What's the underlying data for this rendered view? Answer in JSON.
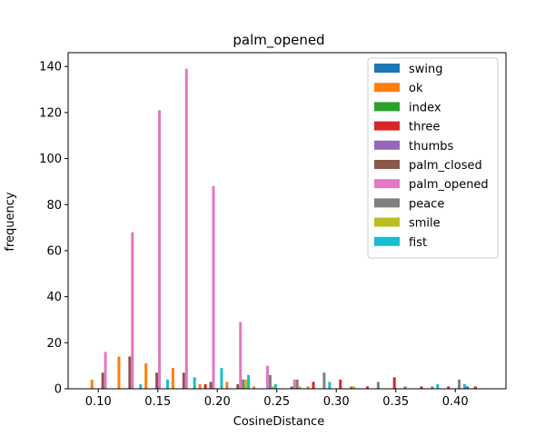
{
  "chart_data": {
    "type": "bar",
    "title": "palm_opened",
    "xlabel": "CosineDistance",
    "ylabel": "frequency",
    "xlim": [
      0.0746,
      0.4426
    ],
    "ylim": [
      0,
      146
    ],
    "xticks": [
      0.1,
      0.15,
      0.2,
      0.25,
      0.3,
      0.35,
      0.4
    ],
    "xtick_labels": [
      "0.10",
      "0.15",
      "0.20",
      "0.25",
      "0.30",
      "0.35",
      "0.40"
    ],
    "yticks": [
      0,
      20,
      40,
      60,
      80,
      100,
      120,
      140
    ],
    "ytick_labels": [
      "0",
      "20",
      "40",
      "60",
      "80",
      "100",
      "120",
      "140"
    ],
    "bin_edges": [
      0.0912,
      0.1139,
      0.1366,
      0.1593,
      0.182,
      0.2047,
      0.2274,
      0.2501,
      0.2728,
      0.2955,
      0.3182,
      0.3409,
      0.3636,
      0.3863,
      0.409,
      0.4317
    ],
    "legend_position": "upper right",
    "series": [
      {
        "name": "swing",
        "color": "#1f77b4",
        "values": [
          0,
          0,
          0,
          0,
          0,
          0,
          0,
          0,
          0,
          0,
          0,
          0,
          0,
          0,
          1
        ]
      },
      {
        "name": "ok",
        "color": "#ff7f0e",
        "values": [
          4,
          14,
          11,
          9,
          2,
          3,
          1,
          0,
          1,
          0,
          0,
          0,
          0,
          0,
          0
        ]
      },
      {
        "name": "index",
        "color": "#2ca02c",
        "values": [
          0,
          0,
          0,
          0,
          0,
          0,
          0,
          0,
          0,
          0,
          0,
          0,
          0,
          0,
          0
        ]
      },
      {
        "name": "three",
        "color": "#d62728",
        "values": [
          0,
          0,
          0,
          0,
          2,
          0,
          0,
          0,
          3,
          4,
          1,
          5,
          1,
          1,
          1
        ]
      },
      {
        "name": "thumbs",
        "color": "#9467bd",
        "values": [
          0,
          0,
          0,
          0,
          0,
          0,
          0,
          0,
          0,
          0,
          0,
          0,
          0,
          0,
          0
        ]
      },
      {
        "name": "palm_closed",
        "color": "#8c564b",
        "values": [
          7,
          14,
          7,
          7,
          3,
          2,
          0,
          1,
          0,
          0,
          0,
          0,
          0,
          0,
          0
        ]
      },
      {
        "name": "palm_opened",
        "color": "#e377c2",
        "values": [
          16,
          68,
          121,
          139,
          88,
          29,
          10,
          4,
          0,
          0,
          0,
          0,
          0,
          0,
          0
        ]
      },
      {
        "name": "peace",
        "color": "#7f7f7f",
        "values": [
          0,
          0,
          0,
          0,
          0,
          4,
          6,
          4,
          7,
          1,
          3,
          1,
          1,
          4,
          0
        ]
      },
      {
        "name": "smile",
        "color": "#bcbd22",
        "values": [
          0,
          0,
          0,
          0,
          0,
          4,
          1,
          1,
          0,
          1,
          0,
          0,
          0,
          0,
          0
        ]
      },
      {
        "name": "fist",
        "color": "#17becf",
        "values": [
          0,
          2,
          4,
          5,
          9,
          6,
          2,
          0,
          3,
          0,
          0,
          0,
          2,
          2,
          0
        ]
      }
    ]
  }
}
